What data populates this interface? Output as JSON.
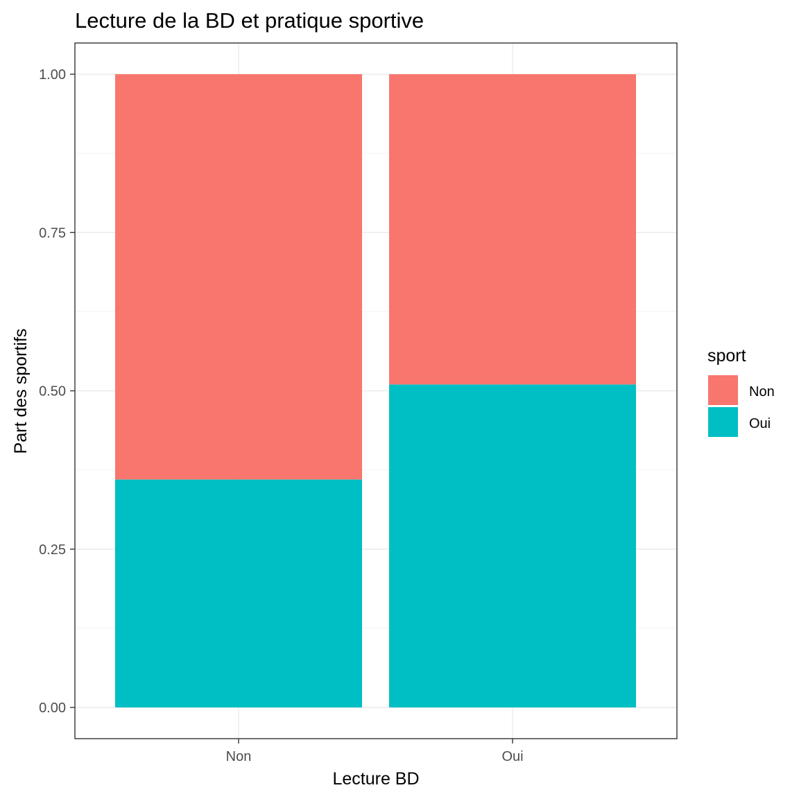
{
  "chart_data": {
    "type": "bar",
    "stacked": true,
    "position": "fill",
    "title": "Lecture de la BD et pratique sportive",
    "xlabel": "Lecture BD",
    "ylabel": "Part des sportifs",
    "categories": [
      "Non",
      "Oui"
    ],
    "series": [
      {
        "name": "Non",
        "color": "#F8766D",
        "values": [
          0.64,
          0.49
        ]
      },
      {
        "name": "Oui",
        "color": "#00BFC4",
        "values": [
          0.36,
          0.51
        ]
      }
    ],
    "stack_order_bottom_to_top": [
      "Oui",
      "Non"
    ],
    "ylim": [
      0,
      1
    ],
    "yticks": [
      "0.00",
      "0.25",
      "0.50",
      "0.75",
      "1.00"
    ],
    "ytick_values": [
      0,
      0.25,
      0.5,
      0.75,
      1
    ],
    "grid": true,
    "theme": "bw",
    "legend": {
      "title": "sport",
      "placement": "right",
      "entries": [
        "Non",
        "Oui"
      ]
    }
  }
}
